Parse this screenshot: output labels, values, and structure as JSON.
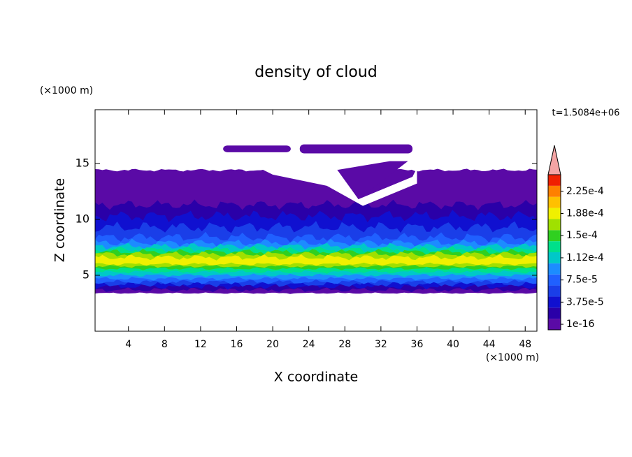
{
  "chart_data": {
    "type": "contour",
    "title": "density of cloud",
    "x_label": "X coordinate",
    "y_label": "Z coordinate",
    "x_unit_label": "(×1000 m)",
    "y_unit_label": "(×1000 m)",
    "annotation": "t=1.5084e+06",
    "xlim": [
      0.3,
      49.3
    ],
    "xticks": [
      4,
      8,
      12,
      16,
      20,
      24,
      28,
      32,
      36,
      40,
      44,
      48
    ],
    "ylim": [
      0,
      19.8
    ],
    "yticks": [
      5,
      10,
      15
    ],
    "colorbar": {
      "levels": [
        1e-16,
        1.875e-05,
        3.75e-05,
        5.625e-05,
        7.5e-05,
        9.375e-05,
        0.0001125,
        0.00013125,
        0.00015,
        0.00016875,
        0.0001875,
        0.00020625,
        0.000225,
        0.00024375
      ],
      "colors": [
        "#5a0aa6",
        "#2a00a8",
        "#1010d0",
        "#1a3ee8",
        "#2060ff",
        "#1c8cff",
        "#00c8c8",
        "#00e08a",
        "#30d020",
        "#a0e000",
        "#f0f000",
        "#ffc000",
        "#ff8000",
        "#f02000"
      ],
      "extend_color": "#f4a4a4",
      "ticks": [
        {
          "value": 1e-16,
          "label": "1e-16"
        },
        {
          "value": 3.75e-05,
          "label": "3.75e-5"
        },
        {
          "value": 7.5e-05,
          "label": "7.5e-5"
        },
        {
          "value": 0.0001125,
          "label": "1.12e-4"
        },
        {
          "value": 0.00015,
          "label": "1.5e-4"
        },
        {
          "value": 0.0001875,
          "label": "1.88e-4"
        },
        {
          "value": 0.000225,
          "label": "2.25e-4"
        }
      ]
    }
  }
}
